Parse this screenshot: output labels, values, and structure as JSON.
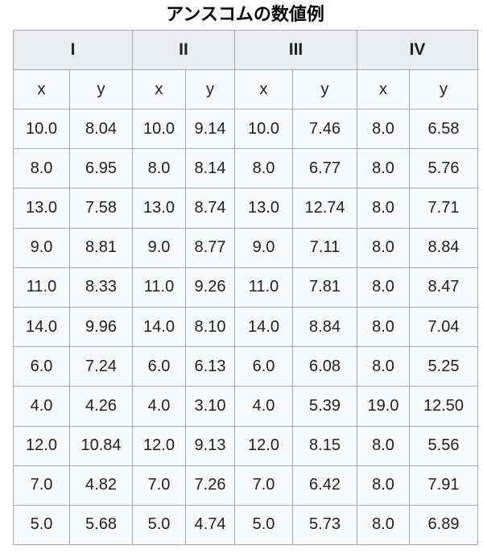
{
  "title": "アンスコムの数値例",
  "table": {
    "groups": [
      "I",
      "II",
      "III",
      "IV"
    ],
    "sub_headers": [
      "x",
      "y",
      "x",
      "y",
      "x",
      "y",
      "x",
      "y"
    ],
    "rows": [
      [
        "10.0",
        "8.04",
        "10.0",
        "9.14",
        "10.0",
        "7.46",
        "8.0",
        "6.58"
      ],
      [
        "8.0",
        "6.95",
        "8.0",
        "8.14",
        "8.0",
        "6.77",
        "8.0",
        "5.76"
      ],
      [
        "13.0",
        "7.58",
        "13.0",
        "8.74",
        "13.0",
        "12.74",
        "8.0",
        "7.71"
      ],
      [
        "9.0",
        "8.81",
        "9.0",
        "8.77",
        "9.0",
        "7.11",
        "8.0",
        "8.84"
      ],
      [
        "11.0",
        "8.33",
        "11.0",
        "9.26",
        "11.0",
        "7.81",
        "8.0",
        "8.47"
      ],
      [
        "14.0",
        "9.96",
        "14.0",
        "8.10",
        "14.0",
        "8.84",
        "8.0",
        "7.04"
      ],
      [
        "6.0",
        "7.24",
        "6.0",
        "6.13",
        "6.0",
        "6.08",
        "8.0",
        "5.25"
      ],
      [
        "4.0",
        "4.26",
        "4.0",
        "3.10",
        "4.0",
        "5.39",
        "19.0",
        "12.50"
      ],
      [
        "12.0",
        "10.84",
        "12.0",
        "9.13",
        "12.0",
        "8.15",
        "8.0",
        "5.56"
      ],
      [
        "7.0",
        "4.82",
        "7.0",
        "7.26",
        "7.0",
        "6.42",
        "8.0",
        "7.91"
      ],
      [
        "5.0",
        "5.68",
        "5.0",
        "4.74",
        "5.0",
        "5.73",
        "8.0",
        "6.89"
      ]
    ]
  },
  "chart_data": {
    "type": "table",
    "title": "アンスコムの数値例",
    "groups": [
      "I",
      "II",
      "III",
      "IV"
    ],
    "columns_per_group": [
      "x",
      "y"
    ],
    "series": [
      {
        "name": "I",
        "x": [
          10.0,
          8.0,
          13.0,
          9.0,
          11.0,
          14.0,
          6.0,
          4.0,
          12.0,
          7.0,
          5.0
        ],
        "y": [
          8.04,
          6.95,
          7.58,
          8.81,
          8.33,
          9.96,
          7.24,
          4.26,
          10.84,
          4.82,
          5.68
        ]
      },
      {
        "name": "II",
        "x": [
          10.0,
          8.0,
          13.0,
          9.0,
          11.0,
          14.0,
          6.0,
          4.0,
          12.0,
          7.0,
          5.0
        ],
        "y": [
          9.14,
          8.14,
          8.74,
          8.77,
          9.26,
          8.1,
          6.13,
          3.1,
          9.13,
          7.26,
          4.74
        ]
      },
      {
        "name": "III",
        "x": [
          10.0,
          8.0,
          13.0,
          9.0,
          11.0,
          14.0,
          6.0,
          4.0,
          12.0,
          7.0,
          5.0
        ],
        "y": [
          7.46,
          6.77,
          12.74,
          7.11,
          7.81,
          8.84,
          6.08,
          5.39,
          8.15,
          6.42,
          5.73
        ]
      },
      {
        "name": "IV",
        "x": [
          8.0,
          8.0,
          8.0,
          8.0,
          8.0,
          8.0,
          8.0,
          19.0,
          8.0,
          8.0,
          8.0
        ],
        "y": [
          6.58,
          5.76,
          7.71,
          8.84,
          8.47,
          7.04,
          5.25,
          12.5,
          5.56,
          7.91,
          6.89
        ]
      }
    ]
  },
  "colors": {
    "header_background": "#eaecf0",
    "cell_background": "#f8f9fa",
    "border": "#a2a9b1",
    "text": "#202122",
    "page_background": "#ffffff"
  }
}
